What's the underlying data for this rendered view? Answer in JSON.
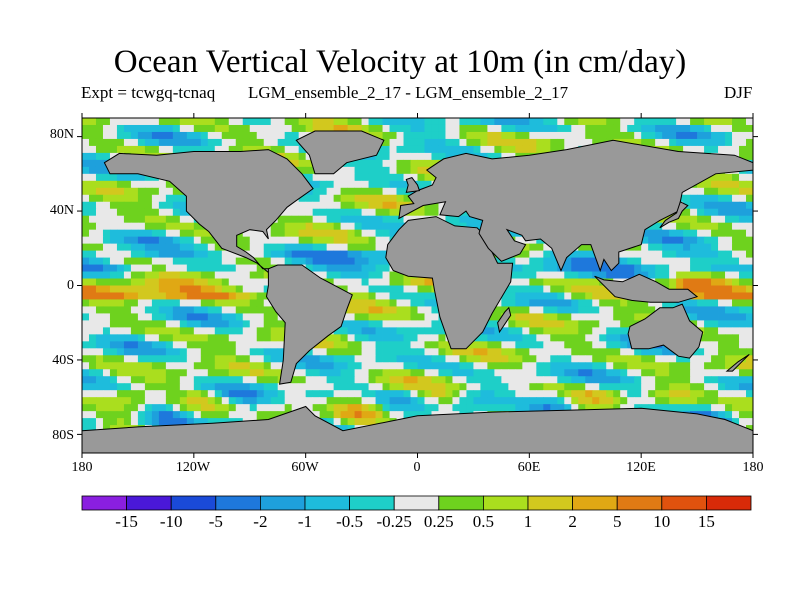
{
  "title": "Ocean Vertical Velocity at 10m (in cm/day)",
  "subtitle_left": "Expt = tcwgq-tcnaq",
  "subtitle_mid": "LGM_ensemble_2_17 - LGM_ensemble_2_17",
  "season": "DJF",
  "y_axis_labels": [
    "80N",
    "40N",
    "0",
    "40S",
    "80S"
  ],
  "x_axis_labels": [
    "180",
    "120W",
    "60W",
    "0",
    "60E",
    "120E",
    "180"
  ],
  "colorbar": {
    "labels": [
      "-15",
      "-10",
      "-5",
      "-2",
      "-1",
      "-0.5",
      "-0.25",
      "0.25",
      "0.5",
      "1",
      "2",
      "5",
      "10",
      "15"
    ],
    "colors": [
      "#8a1fe0",
      "#4a18d8",
      "#1a4ad8",
      "#1e78dc",
      "#1ea0dc",
      "#1ebcdc",
      "#1ecfc8",
      "#e8e8e8",
      "#6ed21e",
      "#aade1e",
      "#d2c81e",
      "#e0a814",
      "#e07a14",
      "#e0520e",
      "#d82a08"
    ]
  },
  "map_colors": {
    "land": "#999999",
    "coast": "#000000"
  },
  "chart_data": {
    "type": "heatmap",
    "title": "Ocean Vertical Velocity at 10m (in cm/day)",
    "xlim": [
      -180,
      180
    ],
    "ylim": [
      -90,
      90
    ],
    "x_ticks": [
      "180",
      "120W",
      "60W",
      "0",
      "60E",
      "120E",
      "180"
    ],
    "y_ticks": [
      "80N",
      "40N",
      "0",
      "40S",
      "80S"
    ],
    "levels": [
      -15,
      -10,
      -5,
      -2,
      -1,
      -0.5,
      -0.25,
      0.25,
      0.5,
      1,
      2,
      5,
      10,
      15
    ],
    "units": "cm/day",
    "season": "DJF"
  }
}
